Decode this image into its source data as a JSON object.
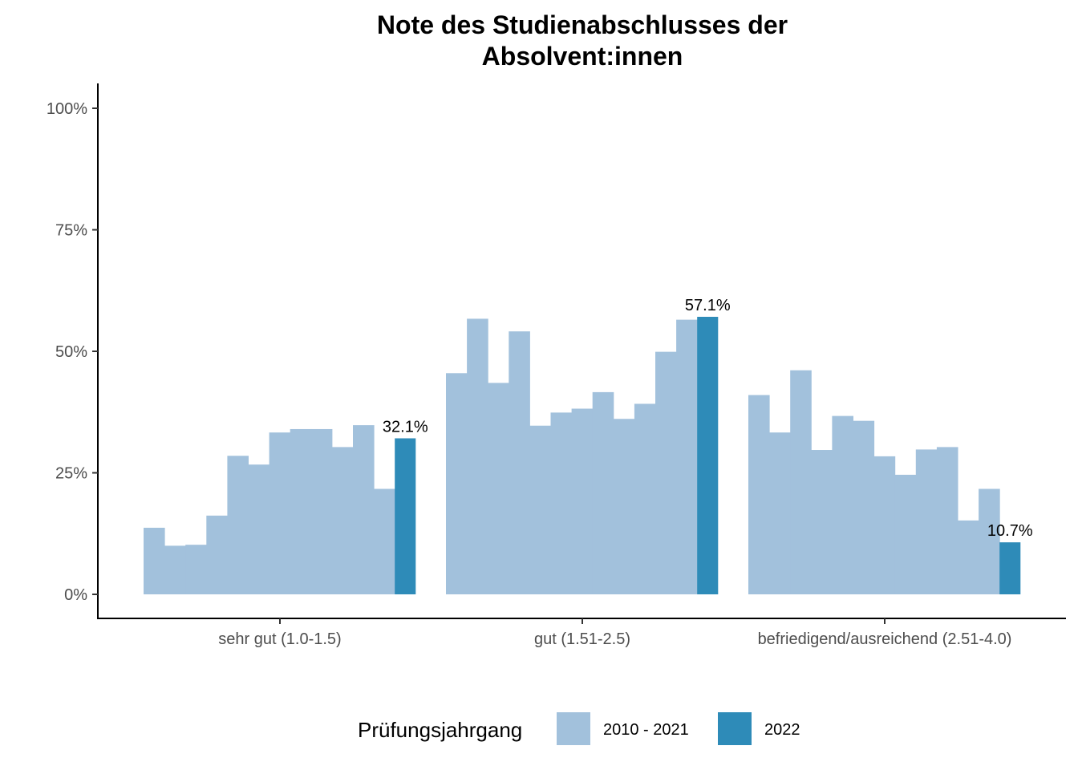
{
  "chart_data": {
    "type": "bar",
    "title_lines": [
      "Note des Studienabschlusses der",
      "Absolvent:innen"
    ],
    "xlabel": "",
    "ylabel": "",
    "ylim": [
      0,
      1
    ],
    "y_ticks": [
      {
        "value": 0,
        "label": "0%"
      },
      {
        "value": 0.25,
        "label": "25%"
      },
      {
        "value": 0.5,
        "label": "50%"
      },
      {
        "value": 0.75,
        "label": "75%"
      },
      {
        "value": 1.0,
        "label": "100%"
      }
    ],
    "grid": false,
    "legend": {
      "title": "Prüfungsjahrgang",
      "position": "bottom",
      "entries": [
        {
          "label": "2010 - 2021",
          "color": "#a2c1dc"
        },
        {
          "label": "2022",
          "color": "#2e8bb8"
        }
      ]
    },
    "categories": [
      "sehr gut (1.0-1.5)",
      "gut (1.51-2.5)",
      "befriedigend/ausreichend (2.51-4.0)"
    ],
    "groups": [
      {
        "category": "sehr gut (1.0-1.5)",
        "history": [
          0.137,
          0.1,
          0.102,
          0.162,
          0.285,
          0.267,
          0.333,
          0.34,
          0.34,
          0.303,
          0.348,
          0.217
        ],
        "current": 0.321,
        "current_label": "32.1%"
      },
      {
        "category": "gut (1.51-2.5)",
        "history": [
          0.455,
          0.567,
          0.435,
          0.541,
          0.347,
          0.374,
          0.382,
          0.416,
          0.361,
          0.392,
          0.499,
          0.565
        ],
        "current": 0.571,
        "current_label": "57.1%"
      },
      {
        "category": "befriedigend/ausreichend (2.51-4.0)",
        "history": [
          0.41,
          0.333,
          0.461,
          0.297,
          0.367,
          0.357,
          0.284,
          0.246,
          0.298,
          0.303,
          0.152,
          0.217
        ],
        "current": 0.107,
        "current_label": "10.7%"
      }
    ],
    "colors": {
      "history": "#a2c1dc",
      "current": "#2e8bb8"
    }
  }
}
